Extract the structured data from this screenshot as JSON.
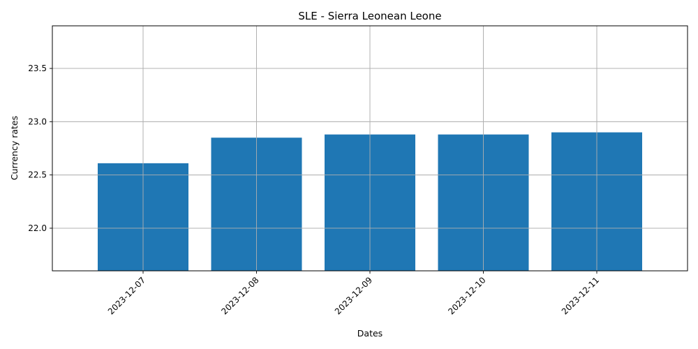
{
  "chart_data": {
    "type": "bar",
    "title": "SLE - Sierra Leonean Leone",
    "xlabel": "Dates",
    "ylabel": "Currency rates",
    "categories": [
      "2023-12-07",
      "2023-12-08",
      "2023-12-09",
      "2023-12-10",
      "2023-12-11"
    ],
    "values": [
      22.61,
      22.85,
      22.88,
      22.88,
      22.9
    ],
    "ylim": [
      21.6,
      23.9
    ],
    "yticks": [
      22.0,
      22.5,
      23.0,
      23.5
    ],
    "ytick_labels": [
      "22.0",
      "22.5",
      "23.0",
      "23.5"
    ],
    "bar_color": "#1f77b4",
    "grid": true,
    "legend": "none"
  }
}
